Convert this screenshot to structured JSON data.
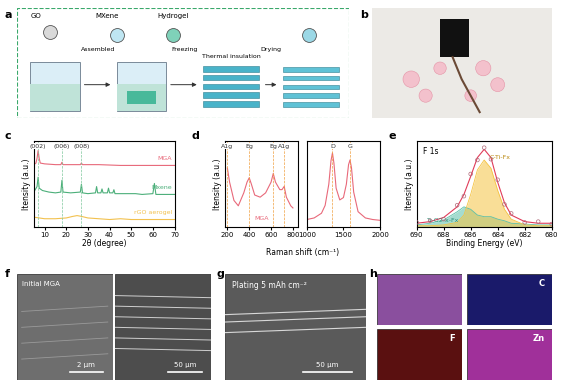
{
  "panel_labels": [
    "a",
    "b",
    "c",
    "d",
    "e",
    "f",
    "g",
    "h"
  ],
  "schematic": {
    "labels": [
      "GO",
      "MXene",
      "Hydrogel"
    ],
    "steps": [
      "Assembled",
      "Freezing",
      "Thermal insulation",
      "Drying"
    ]
  },
  "chart_data": [
    {
      "type": "line",
      "xlabel": "2θ (degree)",
      "ylabel": "Itensity (a.u.)",
      "xlim": [
        5,
        70
      ],
      "xticks": [
        10,
        20,
        30,
        40,
        50,
        60,
        70
      ],
      "ylim": [
        0,
        1.1
      ],
      "tick_labels": "x",
      "annotations": [
        {
          "text": "(002)",
          "x": 7
        },
        {
          "text": "(006)",
          "x": 18
        },
        {
          "text": "(008)",
          "x": 27
        }
      ],
      "series": [
        {
          "name": "MGA",
          "color": "#e8697a",
          "x": [
            5,
            6,
            6.5,
            7,
            7.5,
            8,
            10,
            15,
            17.5,
            18,
            18.5,
            22,
            26.5,
            27,
            27.5,
            35,
            45,
            55,
            65,
            70
          ],
          "values": [
            0.8,
            0.82,
            0.88,
            0.98,
            0.88,
            0.82,
            0.81,
            0.8,
            0.8,
            0.83,
            0.8,
            0.8,
            0.8,
            0.82,
            0.8,
            0.8,
            0.79,
            0.79,
            0.79,
            0.79
          ]
        },
        {
          "name": "Mxene",
          "color": "#4caf7a",
          "x": [
            5,
            6.5,
            7,
            7.5,
            9,
            12,
            15,
            17.5,
            18,
            18.5,
            22,
            26.5,
            27,
            27.5,
            30,
            33.5,
            34,
            34.5,
            36,
            36.5,
            37,
            39,
            39.5,
            40,
            41.5,
            42,
            42.5,
            45,
            48,
            52,
            55,
            60,
            60.7,
            61.4,
            65,
            70
          ],
          "values": [
            0.45,
            0.52,
            0.64,
            0.5,
            0.47,
            0.45,
            0.44,
            0.45,
            0.6,
            0.45,
            0.44,
            0.45,
            0.55,
            0.44,
            0.43,
            0.44,
            0.52,
            0.44,
            0.44,
            0.49,
            0.44,
            0.44,
            0.5,
            0.44,
            0.44,
            0.48,
            0.43,
            0.43,
            0.43,
            0.43,
            0.42,
            0.43,
            0.56,
            0.42,
            0.42,
            0.42
          ]
        },
        {
          "name": "rGO aerogel",
          "color": "#f2c14e",
          "x": [
            5,
            10,
            15,
            20,
            23,
            25,
            27,
            30,
            35,
            40,
            45,
            50,
            60,
            70
          ],
          "values": [
            0.13,
            0.11,
            0.11,
            0.12,
            0.14,
            0.15,
            0.14,
            0.12,
            0.11,
            0.1,
            0.11,
            0.1,
            0.1,
            0.1
          ]
        }
      ]
    },
    {
      "type": "line",
      "xlabel": "Raman shift (cm⁻¹)",
      "ylabel": "Itensity (a.u.)",
      "tick_labels": "x",
      "color": "#e8697a",
      "subcharts": [
        {
          "xlim": [
            180,
            850
          ],
          "xticks": [
            200,
            400,
            600,
            800
          ],
          "ylim": [
            0.2,
            1.0
          ],
          "annotations": [
            {
              "text": "A1g",
              "x": 200
            },
            {
              "text": "Eg",
              "x": 400
            },
            {
              "text": "Eg",
              "x": 620
            },
            {
              "text": "A1g",
              "x": 720
            }
          ],
          "series": [
            {
              "name": "MGA",
              "x": [
                200,
                220,
                260,
                300,
                350,
                380,
                400,
                420,
                450,
                500,
                550,
                600,
                620,
                640,
                680,
                700,
                720,
                740,
                780,
                800
              ],
              "values": [
                0.75,
                0.62,
                0.45,
                0.4,
                0.52,
                0.62,
                0.66,
                0.6,
                0.5,
                0.48,
                0.52,
                0.62,
                0.7,
                0.62,
                0.55,
                0.55,
                0.58,
                0.48,
                0.4,
                0.38
              ]
            }
          ]
        },
        {
          "xlim": [
            1000,
            2000
          ],
          "xticks": [
            1000,
            1500,
            2000
          ],
          "ylim": [
            0,
            1.1
          ],
          "annotations": [
            {
              "text": "D",
              "x": 1350
            },
            {
              "text": "G",
              "x": 1590
            }
          ],
          "series": [
            {
              "x": [
                1000,
                1100,
                1200,
                1250,
                1300,
                1330,
                1350,
                1370,
                1400,
                1450,
                1500,
                1540,
                1570,
                1590,
                1610,
                1640,
                1700,
                1800,
                1900,
                2000
              ],
              "values": [
                0.1,
                0.12,
                0.18,
                0.28,
                0.55,
                0.85,
                0.95,
                0.82,
                0.5,
                0.35,
                0.38,
                0.55,
                0.8,
                0.86,
                0.76,
                0.45,
                0.2,
                0.12,
                0.1,
                0.09
              ]
            }
          ]
        }
      ]
    },
    {
      "type": "line",
      "title": "F 1s",
      "xlabel": "Binding Energy (eV)",
      "ylabel": "Itensity (a.u.)",
      "xlim": [
        690,
        680
      ],
      "xticks": [
        690,
        688,
        686,
        684,
        682,
        680
      ],
      "ylim": [
        0,
        1.05
      ],
      "tick_labels": "x",
      "series": [
        {
          "type": "area",
          "name": "Ti-O2-x-Fx",
          "color": "#5cc0a8",
          "x": [
            690,
            689,
            688,
            687,
            686.5,
            686,
            685.5,
            685,
            684.5,
            684,
            683.5,
            683,
            682,
            681,
            680
          ],
          "values": [
            0.03,
            0.05,
            0.09,
            0.19,
            0.25,
            0.22,
            0.15,
            0.13,
            0.13,
            0.1,
            0.08,
            0.05,
            0.04,
            0.03,
            0.03
          ]
        },
        {
          "type": "area",
          "name": "C-Ti-Fx",
          "color": "#f5c342",
          "x": [
            690,
            689,
            688,
            687,
            686.5,
            686,
            685.5,
            685,
            684.5,
            684,
            683.5,
            683,
            682,
            681,
            680
          ],
          "values": [
            0.02,
            0.02,
            0.03,
            0.06,
            0.15,
            0.4,
            0.7,
            0.82,
            0.72,
            0.45,
            0.22,
            0.1,
            0.03,
            0.02,
            0.02
          ]
        },
        {
          "type": "line",
          "color": "#e03c5a",
          "x": [
            690,
            689,
            688,
            687,
            686.5,
            686,
            685.5,
            685,
            684.5,
            684,
            683.5,
            683,
            682,
            681,
            680
          ],
          "values": [
            0.05,
            0.07,
            0.12,
            0.25,
            0.4,
            0.62,
            0.85,
            0.95,
            0.85,
            0.55,
            0.3,
            0.15,
            0.07,
            0.05,
            0.05
          ]
        },
        {
          "type": "scatter",
          "color": "#b06a7a",
          "marker": "o",
          "x": [
            690,
            689,
            688,
            687,
            686.5,
            686,
            685.5,
            685,
            684.5,
            684,
            683.5,
            683,
            682,
            681,
            680
          ],
          "values": [
            0.06,
            0.08,
            0.1,
            0.27,
            0.38,
            0.65,
            0.82,
            0.97,
            0.83,
            0.58,
            0.28,
            0.17,
            0.06,
            0.07,
            0.04
          ]
        }
      ]
    }
  ],
  "images": {
    "f": {
      "caption": "Initial MGA",
      "scale_bars": [
        "2 μm",
        "50 μm"
      ]
    },
    "g": {
      "caption": "Plating 5 mAh cm⁻²",
      "scale_bar": "50 μm"
    },
    "h": {
      "maps": [
        "C",
        "F",
        "Zn"
      ]
    }
  }
}
